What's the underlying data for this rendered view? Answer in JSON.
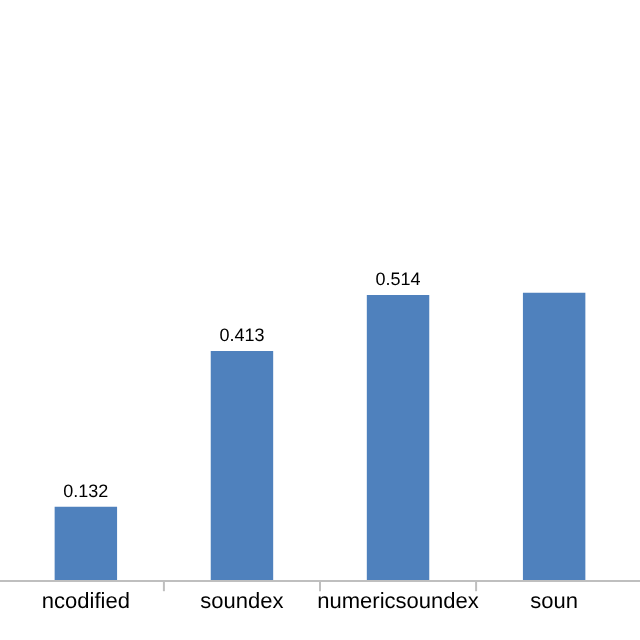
{
  "chart_data": {
    "type": "bar",
    "categories": [
      "ncodified",
      "soundex",
      "numericsoundex",
      "soun"
    ],
    "values": [
      0.132,
      0.413,
      0.514,
      0.518
    ],
    "value_labels": [
      "0.132",
      "0.413",
      "0.514",
      null
    ],
    "color": "#4f81bd"
  }
}
